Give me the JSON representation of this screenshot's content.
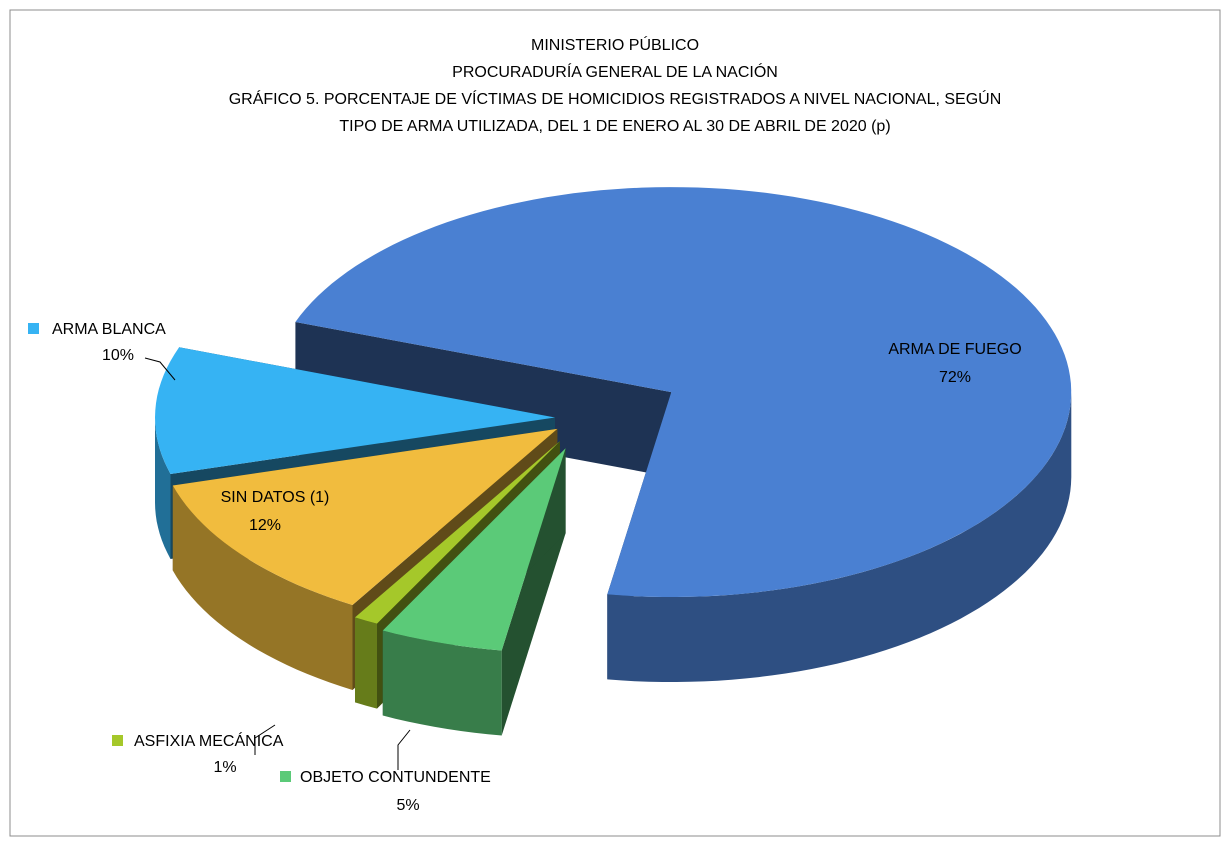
{
  "chart_data": {
    "type": "pie",
    "title": [
      "MINISTERIO PÚBLICO",
      "PROCURADURÍA GENERAL DE LA NACIÓN",
      "GRÁFICO 5. PORCENTAJE DE VÍCTIMAS DE HOMICIDIOS REGISTRADOS A NIVEL NACIONAL,  SEGÚN",
      "TIPO DE ARMA UTILIZADA, DEL 1 DE ENERO AL 30 DE ABRIL DE 2020 (p)"
    ],
    "categories": [
      "ARMA DE FUEGO",
      "OBJETO CONTUNDENTE",
      "ASFIXIA MECÁNICA",
      "SIN DATOS (1)",
      "ARMA BLANCA"
    ],
    "values": [
      72,
      5,
      1,
      12,
      10
    ],
    "value_labels": [
      "72%",
      "5%",
      "1%",
      "12%",
      "10%"
    ],
    "colors": [
      "#4a80d2",
      "#5bca78",
      "#a5c82a",
      "#f1bc3e",
      "#36b3f3"
    ]
  }
}
